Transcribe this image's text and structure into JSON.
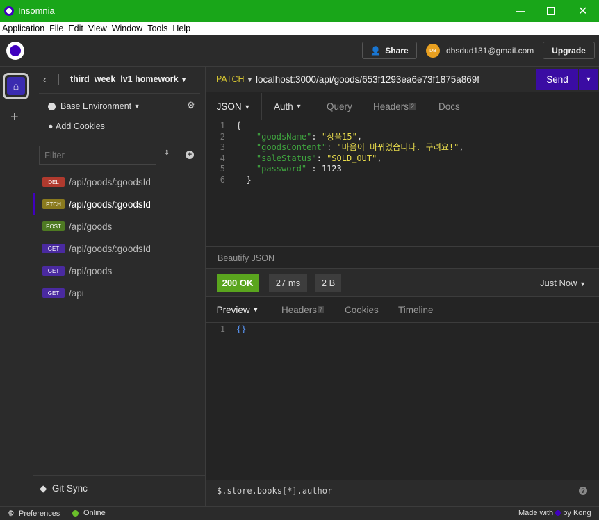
{
  "window": {
    "title": "Insomnia"
  },
  "menu": [
    "Application",
    "File",
    "Edit",
    "View",
    "Window",
    "Tools",
    "Help"
  ],
  "header": {
    "share": "Share",
    "avatar": "DB",
    "email": "dbsdud131@gmail.com",
    "upgrade": "Upgrade"
  },
  "sidebar": {
    "project": "third_week_lv1 homework",
    "environment": "Base Environment",
    "cookies": "Add Cookies",
    "filter_placeholder": "Filter",
    "requests": [
      {
        "method": "DEL",
        "path": "/api/goods/:goodsId",
        "color": "#b03a2e"
      },
      {
        "method": "PTCH",
        "path": "/api/goods/:goodsId",
        "color": "#8a7a1e"
      },
      {
        "method": "POST",
        "path": "/api/goods",
        "color": "#4e7a22"
      },
      {
        "method": "GET",
        "path": "/api/goods/:goodsId",
        "color": "#4a2aa0"
      },
      {
        "method": "GET",
        "path": "/api/goods",
        "color": "#4a2aa0"
      },
      {
        "method": "GET",
        "path": "/api",
        "color": "#4a2aa0"
      }
    ],
    "git_sync": "Git Sync"
  },
  "request": {
    "method": "PATCH",
    "url": "localhost:3000/api/goods/653f1293ea6e73f1875a869f",
    "send": "Send",
    "tabs": [
      "JSON",
      "Auth",
      "Query",
      "Headers",
      "Docs"
    ],
    "headers_count": "2",
    "body_lines": [
      "1",
      "2",
      "3",
      "4",
      "5",
      "6"
    ],
    "body": {
      "k1": "\"goodsName\"",
      "v1": "\"상품15\"",
      "k2": "\"goodsContent\"",
      "v2": "\"마음이 바뀌었습니다. 구려요!\"",
      "k3": "\"saleStatus\"",
      "v3": "\"SOLD_OUT\"",
      "k4": "\"password\"",
      "v4": "1123"
    },
    "beautify": "Beautify JSON"
  },
  "response": {
    "status": "200 OK",
    "time": "27 ms",
    "size": "2 B",
    "when": "Just Now",
    "tabs": [
      "Preview",
      "Headers",
      "Cookies",
      "Timeline"
    ],
    "headers_count": "7",
    "body": "{}",
    "filter": "$.store.books[*].author"
  },
  "status": {
    "preferences": "Preferences",
    "online": "Online",
    "made_with": "Made with",
    "by": "by Kong"
  }
}
